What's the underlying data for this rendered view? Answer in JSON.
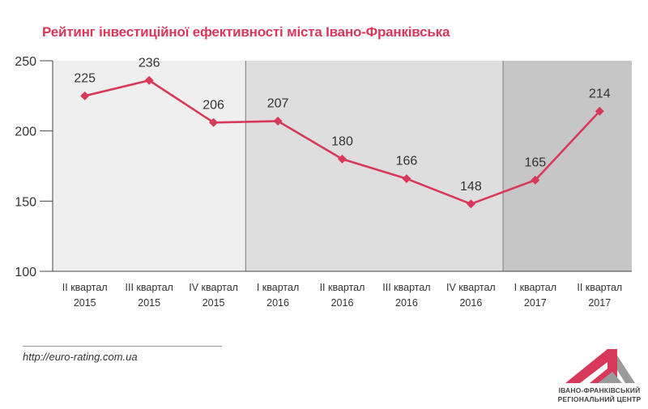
{
  "title": "Рейтинг інвестиційної ефективності міста Івано-Франківська",
  "source": "http://euro-rating.com.ua",
  "logo": {
    "line1": "ІВАНО-ФРАНКІВСЬКИЙ",
    "line2": "РЕГІОНАЛЬНИЙ ЦЕНТР"
  },
  "colors": {
    "series": "#d8385a",
    "band_2015": "#efefef",
    "band_2016": "#dedede",
    "band_2017": "#c6c6c6",
    "band_divider": "#8a8a8a",
    "logo_red": "#d8385a",
    "logo_grey": "#9a9a9a"
  },
  "chart_data": {
    "type": "line",
    "title": "Рейтинг інвестиційної ефективності міста Івано-Франківська",
    "categories": [
      [
        "ІІ квартал",
        "2015"
      ],
      [
        "ІІІ квартал",
        "2015"
      ],
      [
        "IV квартал",
        "2015"
      ],
      [
        "І квартал",
        "2016"
      ],
      [
        "ІІ квартал",
        "2016"
      ],
      [
        "ІІІ квартал",
        "2016"
      ],
      [
        "IV квартал",
        "2016"
      ],
      [
        "І квартал",
        "2017"
      ],
      [
        "ІІ квартал",
        "2017"
      ]
    ],
    "values": [
      225,
      236,
      206,
      207,
      180,
      166,
      148,
      165,
      214
    ],
    "ylim": [
      100,
      250
    ],
    "yticks": [
      "100",
      "150",
      "200",
      "250"
    ],
    "grid": false,
    "marker": "diamond",
    "year_bands": [
      {
        "year": "2015",
        "from": 0,
        "to": 2
      },
      {
        "year": "2016",
        "from": 3,
        "to": 6
      },
      {
        "year": "2017",
        "from": 7,
        "to": 8
      }
    ]
  }
}
